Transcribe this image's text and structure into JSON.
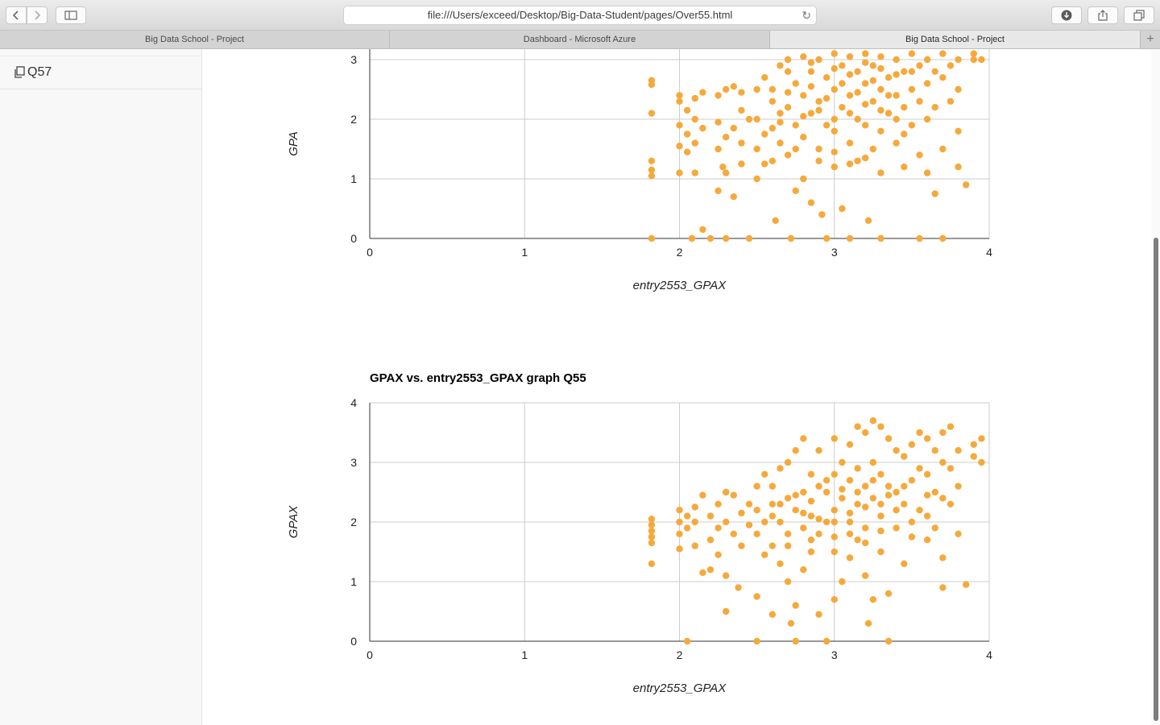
{
  "browser": {
    "url": "file:///Users/exceed/Desktop/Big-Data-Student/pages/Over55.html",
    "tabs": [
      {
        "label": "Big Data School - Project",
        "active": false
      },
      {
        "label": "Dashboard - Microsoft Azure",
        "active": false
      },
      {
        "label": "Big Data School - Project",
        "active": true
      }
    ]
  },
  "sidebar": {
    "items": [
      {
        "label": "Q57",
        "icon": "copy-icon"
      }
    ]
  },
  "chart_data": [
    {
      "type": "scatter",
      "title": "",
      "xlabel": "entry2553_GPAX",
      "ylabel": "GPA",
      "xlim": [
        0,
        4
      ],
      "ylim": [
        0,
        4
      ],
      "xticks": [
        "0",
        "1",
        "2",
        "3",
        "4"
      ],
      "yticks": [
        "0",
        "1",
        "2",
        "3"
      ],
      "color": "#f6a93b",
      "points": [
        [
          1.82,
          2.65
        ],
        [
          1.82,
          2.58
        ],
        [
          1.82,
          2.1
        ],
        [
          1.82,
          1.3
        ],
        [
          1.82,
          1.15
        ],
        [
          1.82,
          1.05
        ],
        [
          1.82,
          0.0
        ],
        [
          2.0,
          2.4
        ],
        [
          2.0,
          2.3
        ],
        [
          2.0,
          1.9
        ],
        [
          2.0,
          1.55
        ],
        [
          2.0,
          1.1
        ],
        [
          2.05,
          2.15
        ],
        [
          2.05,
          1.75
        ],
        [
          2.05,
          1.45
        ],
        [
          2.08,
          0.0
        ],
        [
          2.1,
          2.35
        ],
        [
          2.1,
          2.0
        ],
        [
          2.1,
          1.6
        ],
        [
          2.1,
          1.1
        ],
        [
          2.15,
          2.45
        ],
        [
          2.15,
          1.85
        ],
        [
          2.15,
          0.15
        ],
        [
          2.2,
          0.0
        ],
        [
          2.25,
          2.4
        ],
        [
          2.25,
          1.95
        ],
        [
          2.25,
          1.5
        ],
        [
          2.25,
          0.8
        ],
        [
          2.28,
          1.2
        ],
        [
          2.3,
          2.5
        ],
        [
          2.3,
          1.7
        ],
        [
          2.3,
          1.1
        ],
        [
          2.3,
          0.0
        ],
        [
          2.35,
          2.55
        ],
        [
          2.35,
          1.85
        ],
        [
          2.35,
          0.7
        ],
        [
          2.4,
          2.45
        ],
        [
          2.4,
          2.15
        ],
        [
          2.4,
          1.6
        ],
        [
          2.4,
          1.25
        ],
        [
          2.45,
          2.0
        ],
        [
          2.45,
          0.0
        ],
        [
          2.5,
          2.5
        ],
        [
          2.5,
          2.0
        ],
        [
          2.5,
          1.5
        ],
        [
          2.5,
          1.0
        ],
        [
          2.55,
          2.7
        ],
        [
          2.55,
          1.25
        ],
        [
          2.6,
          2.3
        ],
        [
          2.6,
          1.85
        ],
        [
          2.6,
          1.3
        ],
        [
          2.62,
          0.3
        ],
        [
          2.65,
          2.9
        ],
        [
          2.65,
          2.1
        ],
        [
          2.65,
          1.6
        ],
        [
          2.7,
          3.0
        ],
        [
          2.7,
          2.2
        ],
        [
          2.7,
          1.4
        ],
        [
          2.72,
          0.0
        ],
        [
          2.75,
          2.6
        ],
        [
          2.75,
          1.9
        ],
        [
          2.75,
          0.8
        ],
        [
          2.8,
          3.05
        ],
        [
          2.8,
          2.4
        ],
        [
          2.8,
          1.7
        ],
        [
          2.8,
          1.0
        ],
        [
          2.85,
          2.8
        ],
        [
          2.85,
          2.1
        ],
        [
          2.85,
          0.6
        ],
        [
          2.9,
          3.0
        ],
        [
          2.9,
          2.3
        ],
        [
          2.9,
          1.5
        ],
        [
          2.92,
          0.4
        ],
        [
          2.95,
          2.7
        ],
        [
          2.95,
          1.9
        ],
        [
          2.95,
          0.0
        ],
        [
          3.0,
          3.1
        ],
        [
          3.0,
          2.5
        ],
        [
          3.0,
          1.8
        ],
        [
          3.0,
          1.2
        ],
        [
          3.05,
          2.9
        ],
        [
          3.05,
          2.2
        ],
        [
          3.05,
          0.5
        ],
        [
          3.1,
          3.05
        ],
        [
          3.1,
          2.4
        ],
        [
          3.1,
          1.6
        ],
        [
          3.1,
          0.0
        ],
        [
          3.15,
          2.8
        ],
        [
          3.15,
          2.0
        ],
        [
          3.15,
          1.3
        ],
        [
          3.2,
          3.1
        ],
        [
          3.2,
          2.6
        ],
        [
          3.2,
          1.9
        ],
        [
          3.22,
          0.3
        ],
        [
          3.25,
          2.9
        ],
        [
          3.25,
          2.3
        ],
        [
          3.25,
          1.5
        ],
        [
          3.3,
          3.05
        ],
        [
          3.3,
          2.5
        ],
        [
          3.3,
          1.8
        ],
        [
          3.3,
          0.0
        ],
        [
          3.35,
          2.7
        ],
        [
          3.35,
          2.1
        ],
        [
          3.4,
          3.0
        ],
        [
          3.4,
          2.4
        ],
        [
          3.4,
          1.6
        ],
        [
          3.45,
          2.8
        ],
        [
          3.45,
          2.2
        ],
        [
          3.45,
          1.2
        ],
        [
          3.5,
          3.1
        ],
        [
          3.5,
          2.5
        ],
        [
          3.5,
          1.9
        ],
        [
          3.55,
          2.9
        ],
        [
          3.55,
          2.3
        ],
        [
          3.55,
          1.4
        ],
        [
          3.55,
          0.0
        ],
        [
          3.6,
          3.0
        ],
        [
          3.6,
          2.6
        ],
        [
          3.6,
          2.0
        ],
        [
          3.6,
          1.1
        ],
        [
          3.65,
          2.8
        ],
        [
          3.65,
          2.2
        ],
        [
          3.65,
          0.75
        ],
        [
          3.7,
          3.1
        ],
        [
          3.7,
          2.7
        ],
        [
          3.7,
          1.5
        ],
        [
          3.7,
          0.0
        ],
        [
          3.75,
          2.9
        ],
        [
          3.75,
          2.3
        ],
        [
          3.8,
          3.0
        ],
        [
          3.8,
          2.5
        ],
        [
          3.8,
          1.8
        ],
        [
          3.8,
          1.2
        ],
        [
          3.85,
          0.9
        ],
        [
          3.9,
          3.0
        ],
        [
          3.9,
          3.1
        ],
        [
          3.95,
          3.0
        ],
        [
          2.6,
          2.5
        ],
        [
          2.7,
          2.45
        ],
        [
          2.85,
          2.55
        ],
        [
          2.95,
          2.35
        ],
        [
          3.05,
          2.6
        ],
        [
          3.15,
          2.45
        ],
        [
          3.25,
          2.65
        ],
        [
          3.35,
          2.4
        ],
        [
          2.65,
          1.95
        ],
        [
          2.8,
          2.05
        ],
        [
          2.9,
          2.15
        ],
        [
          3.0,
          2.0
        ],
        [
          3.1,
          2.1
        ],
        [
          3.2,
          2.25
        ],
        [
          3.3,
          2.15
        ],
        [
          3.4,
          2.0
        ],
        [
          2.75,
          1.5
        ],
        [
          2.9,
          1.3
        ],
        [
          3.0,
          1.45
        ],
        [
          3.1,
          1.25
        ],
        [
          3.2,
          1.35
        ],
        [
          3.3,
          1.1
        ],
        [
          2.55,
          1.75
        ],
        [
          3.45,
          1.75
        ],
        [
          2.7,
          2.8
        ],
        [
          2.85,
          2.95
        ],
        [
          3.0,
          2.85
        ],
        [
          3.1,
          2.75
        ],
        [
          3.2,
          2.95
        ],
        [
          3.3,
          2.85
        ],
        [
          3.4,
          2.75
        ],
        [
          3.5,
          2.8
        ]
      ]
    },
    {
      "type": "scatter",
      "title": "GPAX vs. entry2553_GPAX graph Q55",
      "xlabel": "entry2553_GPAX",
      "ylabel": "GPAX",
      "xlim": [
        0,
        4
      ],
      "ylim": [
        0,
        4
      ],
      "xticks": [
        "0",
        "1",
        "2",
        "3",
        "4"
      ],
      "yticks": [
        "0",
        "1",
        "2",
        "3",
        "4"
      ],
      "color": "#f6a93b",
      "points": [
        [
          1.82,
          2.05
        ],
        [
          1.82,
          1.95
        ],
        [
          1.82,
          1.85
        ],
        [
          1.82,
          1.75
        ],
        [
          1.82,
          1.65
        ],
        [
          1.82,
          1.3
        ],
        [
          2.0,
          2.2
        ],
        [
          2.0,
          2.0
        ],
        [
          2.0,
          1.8
        ],
        [
          2.0,
          1.55
        ],
        [
          2.05,
          2.1
        ],
        [
          2.05,
          1.9
        ],
        [
          2.05,
          0.0
        ],
        [
          2.1,
          2.25
        ],
        [
          2.1,
          2.0
        ],
        [
          2.1,
          1.6
        ],
        [
          2.15,
          2.45
        ],
        [
          2.15,
          1.15
        ],
        [
          2.2,
          2.1
        ],
        [
          2.2,
          1.7
        ],
        [
          2.2,
          1.2
        ],
        [
          2.25,
          2.3
        ],
        [
          2.25,
          1.9
        ],
        [
          2.25,
          1.45
        ],
        [
          2.3,
          2.5
        ],
        [
          2.3,
          2.0
        ],
        [
          2.3,
          1.1
        ],
        [
          2.3,
          0.5
        ],
        [
          2.35,
          2.45
        ],
        [
          2.35,
          1.8
        ],
        [
          2.38,
          0.9
        ],
        [
          2.4,
          2.15
        ],
        [
          2.4,
          1.6
        ],
        [
          2.45,
          2.3
        ],
        [
          2.45,
          1.95
        ],
        [
          2.5,
          2.6
        ],
        [
          2.5,
          2.2
        ],
        [
          2.5,
          1.8
        ],
        [
          2.5,
          0.75
        ],
        [
          2.5,
          0.0
        ],
        [
          2.55,
          2.8
        ],
        [
          2.55,
          2.0
        ],
        [
          2.55,
          1.45
        ],
        [
          2.6,
          2.6
        ],
        [
          2.6,
          2.1
        ],
        [
          2.6,
          1.6
        ],
        [
          2.6,
          0.45
        ],
        [
          2.65,
          2.9
        ],
        [
          2.65,
          2.3
        ],
        [
          2.65,
          1.3
        ],
        [
          2.7,
          3.0
        ],
        [
          2.7,
          2.4
        ],
        [
          2.7,
          1.8
        ],
        [
          2.7,
          1.0
        ],
        [
          2.72,
          0.3
        ],
        [
          2.75,
          3.2
        ],
        [
          2.75,
          2.2
        ],
        [
          2.75,
          0.6
        ],
        [
          2.75,
          0.0
        ],
        [
          2.8,
          3.4
        ],
        [
          2.8,
          2.5
        ],
        [
          2.8,
          1.9
        ],
        [
          2.8,
          1.2
        ],
        [
          2.85,
          2.8
        ],
        [
          2.85,
          2.1
        ],
        [
          2.85,
          1.5
        ],
        [
          2.9,
          3.2
        ],
        [
          2.9,
          2.6
        ],
        [
          2.9,
          1.8
        ],
        [
          2.9,
          0.45
        ],
        [
          2.95,
          2.7
        ],
        [
          2.95,
          2.0
        ],
        [
          2.95,
          0.0
        ],
        [
          3.0,
          3.4
        ],
        [
          3.0,
          2.8
        ],
        [
          3.0,
          2.2
        ],
        [
          3.0,
          1.5
        ],
        [
          3.0,
          0.7
        ],
        [
          3.05,
          3.0
        ],
        [
          3.05,
          2.4
        ],
        [
          3.05,
          1.0
        ],
        [
          3.1,
          3.3
        ],
        [
          3.1,
          2.7
        ],
        [
          3.1,
          2.0
        ],
        [
          3.1,
          1.4
        ],
        [
          3.15,
          3.6
        ],
        [
          3.15,
          2.9
        ],
        [
          3.15,
          2.3
        ],
        [
          3.15,
          1.7
        ],
        [
          3.2,
          3.5
        ],
        [
          3.2,
          2.6
        ],
        [
          3.2,
          1.9
        ],
        [
          3.2,
          1.1
        ],
        [
          3.22,
          0.3
        ],
        [
          3.25,
          3.7
        ],
        [
          3.25,
          3.0
        ],
        [
          3.25,
          2.4
        ],
        [
          3.25,
          0.7
        ],
        [
          3.3,
          3.6
        ],
        [
          3.3,
          2.8
        ],
        [
          3.3,
          2.1
        ],
        [
          3.3,
          1.5
        ],
        [
          3.35,
          3.4
        ],
        [
          3.35,
          2.6
        ],
        [
          3.35,
          0.8
        ],
        [
          3.35,
          0.0
        ],
        [
          3.4,
          3.2
        ],
        [
          3.4,
          2.5
        ],
        [
          3.4,
          1.9
        ],
        [
          3.45,
          3.1
        ],
        [
          3.45,
          2.3
        ],
        [
          3.45,
          1.3
        ],
        [
          3.5,
          3.3
        ],
        [
          3.5,
          2.7
        ],
        [
          3.5,
          2.0
        ],
        [
          3.55,
          3.5
        ],
        [
          3.55,
          2.9
        ],
        [
          3.55,
          2.2
        ],
        [
          3.6,
          3.4
        ],
        [
          3.6,
          2.8
        ],
        [
          3.6,
          2.1
        ],
        [
          3.6,
          1.7
        ],
        [
          3.65,
          3.2
        ],
        [
          3.65,
          2.5
        ],
        [
          3.65,
          1.9
        ],
        [
          3.7,
          3.5
        ],
        [
          3.7,
          3.0
        ],
        [
          3.7,
          2.4
        ],
        [
          3.7,
          1.4
        ],
        [
          3.7,
          0.9
        ],
        [
          3.75,
          3.6
        ],
        [
          3.75,
          2.9
        ],
        [
          3.75,
          2.3
        ],
        [
          3.8,
          3.2
        ],
        [
          3.8,
          2.6
        ],
        [
          3.8,
          1.8
        ],
        [
          3.85,
          0.95
        ],
        [
          3.9,
          3.3
        ],
        [
          3.9,
          3.1
        ],
        [
          3.95,
          3.4
        ],
        [
          3.95,
          3.0
        ],
        [
          2.6,
          2.3
        ],
        [
          2.75,
          2.45
        ],
        [
          2.85,
          2.35
        ],
        [
          2.95,
          2.5
        ],
        [
          3.05,
          2.55
        ],
        [
          3.15,
          2.5
        ],
        [
          3.25,
          2.7
        ],
        [
          3.35,
          2.45
        ],
        [
          3.45,
          2.6
        ],
        [
          2.65,
          2.0
        ],
        [
          2.8,
          2.15
        ],
        [
          2.9,
          2.05
        ],
        [
          3.0,
          2.0
        ],
        [
          3.1,
          2.15
        ],
        [
          3.2,
          2.25
        ],
        [
          3.3,
          2.3
        ],
        [
          3.4,
          2.2
        ],
        [
          2.7,
          1.6
        ],
        [
          2.85,
          1.7
        ],
        [
          3.0,
          1.75
        ],
        [
          3.1,
          1.8
        ],
        [
          3.2,
          1.65
        ],
        [
          3.3,
          1.85
        ],
        [
          3.5,
          1.75
        ],
        [
          3.6,
          2.45
        ]
      ]
    }
  ]
}
